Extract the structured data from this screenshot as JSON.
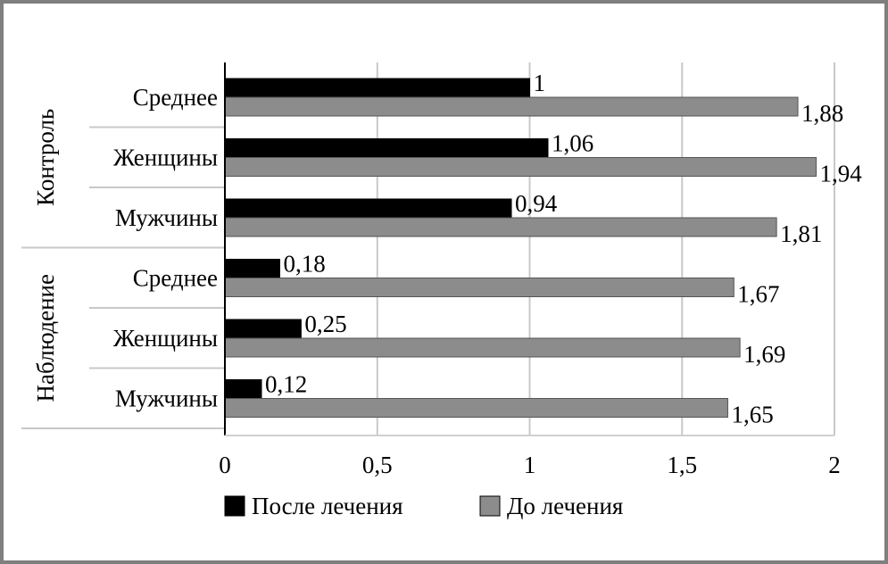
{
  "chart_data": {
    "type": "bar",
    "orientation": "horizontal",
    "groups": [
      {
        "label": "Контроль",
        "categories": [
          "Среднее",
          "Женщины",
          "Мужчины"
        ]
      },
      {
        "label": "Наблюдение",
        "categories": [
          "Среднее",
          "Женщины",
          "Мужчины"
        ]
      }
    ],
    "series": [
      {
        "name": "После лечения",
        "color": "#000000",
        "values": [
          1,
          1.06,
          0.94,
          0.18,
          0.25,
          0.12
        ],
        "labels": [
          "1",
          "1,06",
          "0,94",
          "0,18",
          "0,25",
          "0,12"
        ]
      },
      {
        "name": "До лечения",
        "color": "#8c8c8c",
        "values": [
          1.88,
          1.94,
          1.81,
          1.67,
          1.69,
          1.65
        ],
        "labels": [
          "1,88",
          "1,94",
          "1,81",
          "1,67",
          "1,69",
          "1,65"
        ]
      }
    ],
    "xlim": [
      0,
      2
    ],
    "xticks": [
      0,
      0.5,
      1,
      1.5,
      2
    ],
    "xtick_labels": [
      "0",
      "0,5",
      "1",
      "1,5",
      "2"
    ],
    "grid": true,
    "legend": "bottom"
  }
}
